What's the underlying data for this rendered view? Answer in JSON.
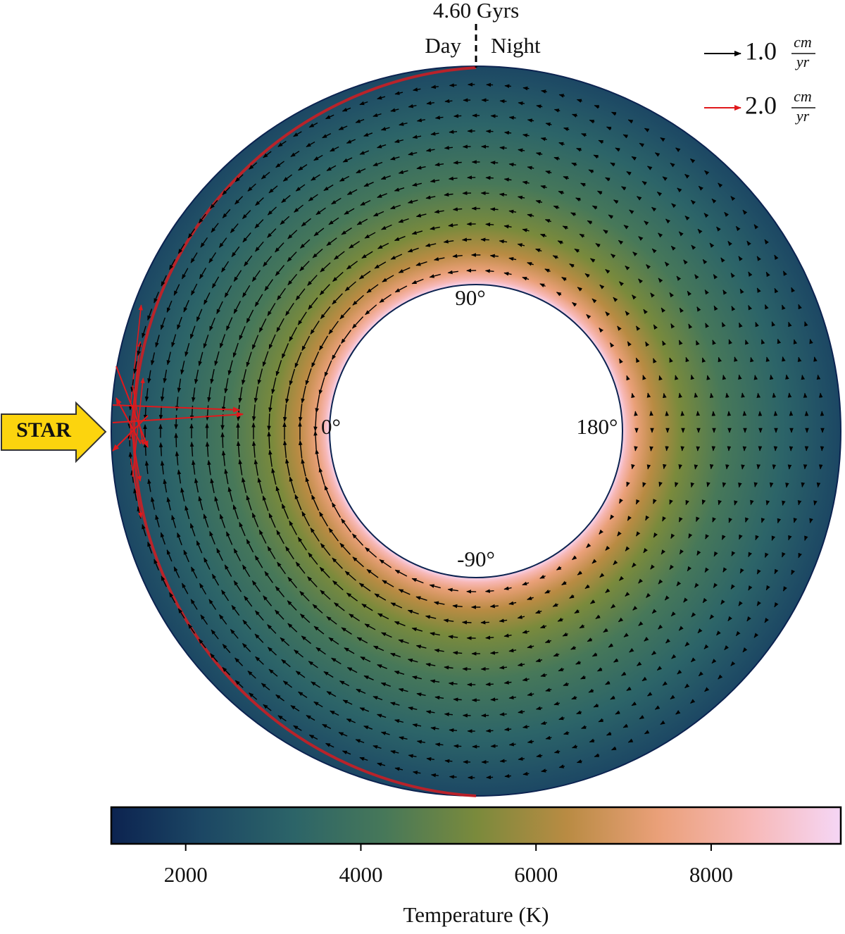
{
  "chart_data": {
    "type": "annulus",
    "title": "4.60 Gyrs",
    "side_labels": [
      "Day",
      "Night"
    ],
    "angle_labels": [
      "90°",
      "0°",
      "180°",
      "-90°"
    ],
    "star_label": "STAR",
    "legend": [
      {
        "value": 1.0,
        "label": "1.0",
        "unit_top": "cm",
        "unit_bottom": "yr",
        "color": "#000000"
      },
      {
        "value": 2.0,
        "label": "2.0",
        "unit_top": "cm",
        "unit_bottom": "yr",
        "color": "#e0191c"
      }
    ],
    "colorbar": {
      "label": "Temperature (K)",
      "clim": [
        1150,
        9480
      ],
      "cticks": [
        2000,
        4000,
        6000,
        8000
      ],
      "colormap": [
        "#0c2350",
        "#1c4764",
        "#2c6468",
        "#477859",
        "#7a8a3c",
        "#b98b43",
        "#eaa079",
        "#f7b8b6",
        "#f5d6f5"
      ]
    }
  }
}
